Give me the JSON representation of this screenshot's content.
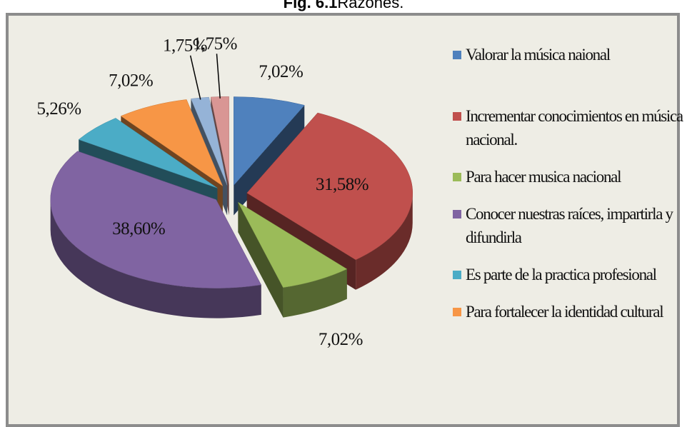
{
  "chart_data": {
    "type": "pie",
    "figure_label": "Fig. 6.1",
    "title": "Razones.",
    "categories": [
      "Valorar la música naional",
      "Incrementar conocimientos en música nacional.",
      "Para hacer musica nacional",
      "Conocer nuestras raíces, impartirla y difundirla",
      "Es parte de la practica profesional",
      "Para fortalecer la identidad cultural",
      null,
      null
    ],
    "values": [
      7.02,
      31.58,
      7.02,
      38.6,
      5.26,
      7.02,
      1.75,
      1.75
    ],
    "value_labels": [
      "7,02%",
      "31,58%",
      "7,02%",
      "38,60%",
      "5,26%",
      "7,02%",
      "1,75%",
      "1,75%"
    ],
    "colors": [
      "#4f81bd",
      "#c0504d",
      "#9bbb59",
      "#8064a2",
      "#4bacc6",
      "#f79646",
      "#95b3d7",
      "#d99694"
    ],
    "legend": "right"
  }
}
